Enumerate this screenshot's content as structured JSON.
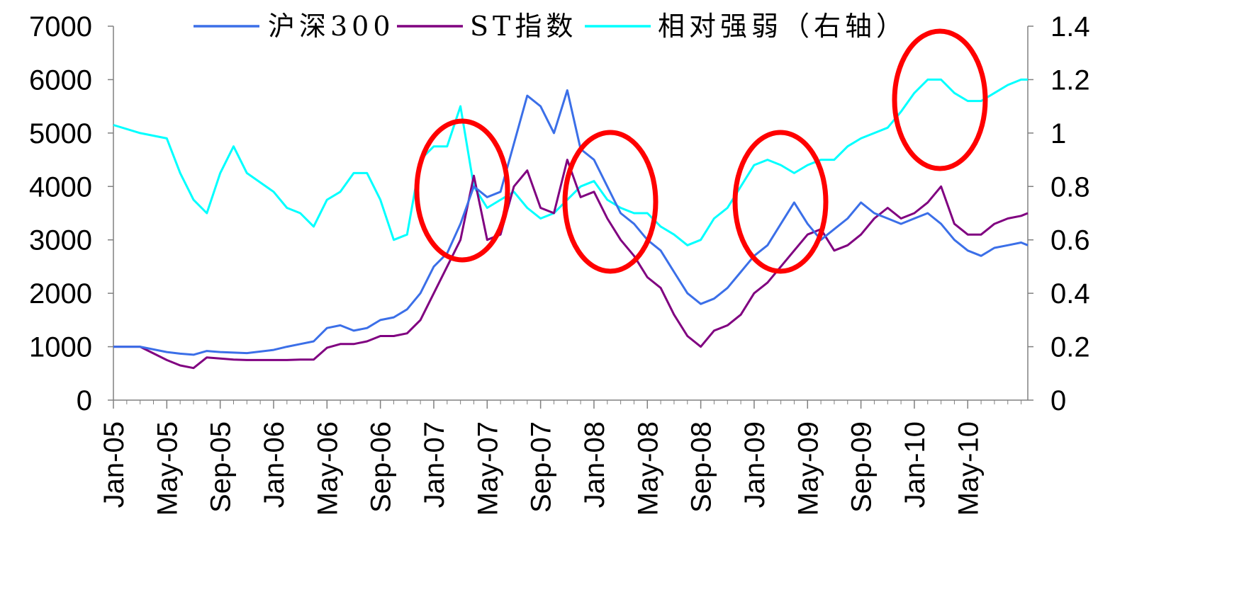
{
  "chart_data": {
    "type": "line",
    "x_axis": {
      "tick_labels": [
        "Jan-05",
        "May-05",
        "Sep-05",
        "Jan-06",
        "May-06",
        "Sep-06",
        "Jan-07",
        "May-07",
        "Sep-07",
        "Jan-08",
        "May-08",
        "Sep-08",
        "Jan-09",
        "May-09",
        "Sep-09",
        "Jan-10",
        "May-10"
      ],
      "range": [
        "2005-01",
        "2010-09"
      ]
    },
    "y_left": {
      "min": 0,
      "max": 7000,
      "ticks": [
        "0",
        "1000",
        "2000",
        "3000",
        "4000",
        "5000",
        "6000",
        "7000"
      ]
    },
    "y_right": {
      "min": 0,
      "max": 1.4,
      "ticks": [
        "0",
        "0.2",
        "0.4",
        "0.6",
        "0.8",
        "1",
        "1.2",
        "1.4"
      ]
    },
    "grid": false,
    "legend": {
      "placement": "top-center"
    },
    "x_months": [
      0,
      2,
      4,
      5,
      6,
      7,
      8,
      9,
      10,
      12,
      13,
      14,
      15,
      16,
      17,
      18,
      19,
      20,
      21,
      22,
      23,
      24,
      25,
      26,
      27,
      28,
      29,
      30,
      31,
      32,
      33,
      34,
      35,
      36,
      37,
      38,
      39,
      40,
      41,
      42,
      43,
      44,
      45,
      46,
      47,
      48,
      49,
      50,
      51,
      52,
      53,
      54,
      55,
      56,
      57,
      58,
      59,
      60,
      61,
      62,
      63,
      64,
      65,
      66,
      67,
      68,
      68.5
    ],
    "series": [
      {
        "name": "沪深300",
        "axis": "left",
        "color": "#3b6fe8",
        "values": [
          1000,
          1000,
          900,
          870,
          850,
          920,
          900,
          890,
          880,
          940,
          1000,
          1050,
          1100,
          1350,
          1400,
          1300,
          1350,
          1500,
          1550,
          1700,
          2000,
          2500,
          2750,
          3300,
          4000,
          3800,
          3900,
          4800,
          5700,
          5500,
          5000,
          5800,
          4700,
          4500,
          4000,
          3500,
          3300,
          3000,
          2800,
          2400,
          2000,
          1800,
          1900,
          2100,
          2400,
          2700,
          2900,
          3300,
          3700,
          3300,
          3000,
          3200,
          3400,
          3700,
          3500,
          3400,
          3300,
          3400,
          3500,
          3300,
          3000,
          2800,
          2700,
          2850,
          2900,
          2950,
          2900
        ]
      },
      {
        "name": "ST指数",
        "axis": "left",
        "color": "#800080",
        "values": [
          1000,
          1000,
          750,
          650,
          600,
          800,
          780,
          760,
          750,
          750,
          750,
          760,
          760,
          980,
          1050,
          1050,
          1100,
          1200,
          1200,
          1250,
          1500,
          2000,
          2500,
          3000,
          4200,
          3000,
          3100,
          4000,
          4300,
          3600,
          3500,
          4500,
          3800,
          3900,
          3400,
          3000,
          2700,
          2300,
          2100,
          1600,
          1200,
          1000,
          1300,
          1400,
          1600,
          2000,
          2200,
          2500,
          2800,
          3100,
          3200,
          2800,
          2900,
          3100,
          3400,
          3600,
          3400,
          3500,
          3700,
          4000,
          3300,
          3100,
          3100,
          3300,
          3400,
          3450,
          3500
        ]
      },
      {
        "name": "相对强弱（右轴）",
        "axis": "right",
        "color": "#00ffff",
        "values": [
          1.03,
          1.0,
          0.98,
          0.85,
          0.75,
          0.7,
          0.85,
          0.95,
          0.85,
          0.78,
          0.72,
          0.7,
          0.65,
          0.75,
          0.78,
          0.85,
          0.85,
          0.75,
          0.6,
          0.62,
          0.9,
          0.95,
          0.95,
          1.1,
          0.8,
          0.72,
          0.75,
          0.78,
          0.72,
          0.68,
          0.7,
          0.75,
          0.8,
          0.82,
          0.75,
          0.72,
          0.7,
          0.7,
          0.65,
          0.62,
          0.58,
          0.6,
          0.68,
          0.72,
          0.8,
          0.88,
          0.9,
          0.88,
          0.85,
          0.88,
          0.9,
          0.9,
          0.95,
          0.98,
          1.0,
          1.02,
          1.08,
          1.15,
          1.2,
          1.2,
          1.15,
          1.12,
          1.12,
          1.15,
          1.18,
          1.2,
          1.2
        ]
      }
    ],
    "annotations": [
      {
        "shape": "ellipse",
        "color": "#ff0000",
        "near": "Feb-07 to Apr-07"
      },
      {
        "shape": "ellipse",
        "color": "#ff0000",
        "near": "Jan-08 to Mar-08"
      },
      {
        "shape": "ellipse",
        "color": "#ff0000",
        "near": "Jan-09 to Apr-09"
      },
      {
        "shape": "ellipse",
        "color": "#ff0000",
        "near": "Dec-09 to Mar-10"
      }
    ]
  }
}
